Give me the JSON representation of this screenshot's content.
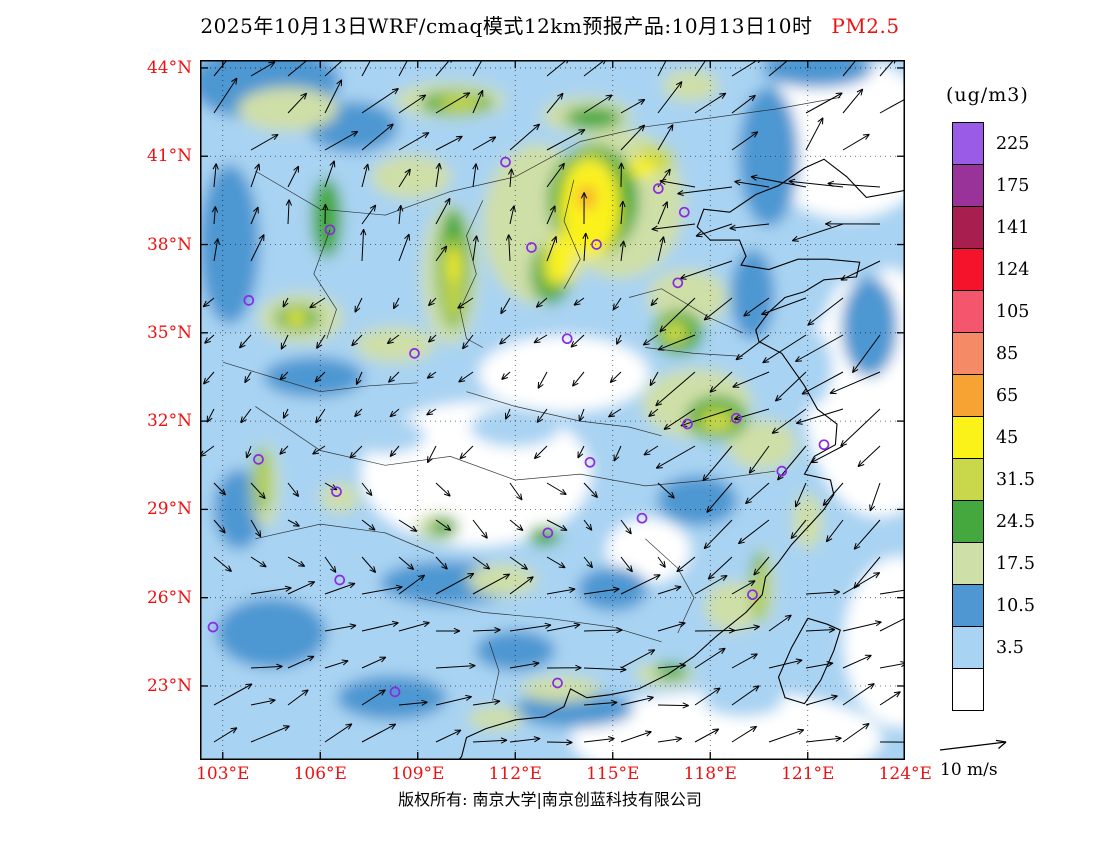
{
  "title": {
    "main": "2025年10月13日WRF/cmaq模式12km预报产品:10月13日10时",
    "species": "PM2.5"
  },
  "colors": {
    "label_red": "#ee1111",
    "station_purple": "#8b2be2",
    "frame_black": "#000000"
  },
  "axes": {
    "lat": [
      {
        "label": "44°N",
        "value": 44
      },
      {
        "label": "41°N",
        "value": 41
      },
      {
        "label": "38°N",
        "value": 38
      },
      {
        "label": "35°N",
        "value": 35
      },
      {
        "label": "32°N",
        "value": 32
      },
      {
        "label": "29°N",
        "value": 29
      },
      {
        "label": "26°N",
        "value": 26
      },
      {
        "label": "23°N",
        "value": 23
      }
    ],
    "lon": [
      {
        "label": "103°E",
        "value": 103
      },
      {
        "label": "106°E",
        "value": 106
      },
      {
        "label": "109°E",
        "value": 109
      },
      {
        "label": "112°E",
        "value": 112
      },
      {
        "label": "115°E",
        "value": 115
      },
      {
        "label": "118°E",
        "value": 118
      },
      {
        "label": "121°E",
        "value": 121
      },
      {
        "label": "124°E",
        "value": 124
      }
    ]
  },
  "legend": {
    "unit": "(ug/m3)",
    "levels": [
      "225",
      "175",
      "141",
      "124",
      "105",
      "85",
      "65",
      "45",
      "31.5",
      "24.5",
      "17.5",
      "10.5",
      "3.5"
    ],
    "colors": [
      "#9a5ce6",
      "#993399",
      "#a81e4e",
      "#f5132c",
      "#f4566e",
      "#f58a66",
      "#f6a333",
      "#fbf21a",
      "#c8d84a",
      "#44a83e",
      "#cfdfa8",
      "#4e97d2",
      "#a9d3f2",
      "#ffffff"
    ]
  },
  "wind_ref": {
    "label": "10 m/s"
  },
  "footer": {
    "text": "版权所有: 南京大学|南京创蓝科技有限公司"
  },
  "map": {
    "projection": {
      "lon0": 102.3,
      "lon_scale": 32.5,
      "lat0": 44.27,
      "lat_scale": 29.43
    },
    "stations": [
      [
        111.7,
        40.8
      ],
      [
        116.4,
        39.9
      ],
      [
        117.2,
        39.1
      ],
      [
        114.5,
        38.0
      ],
      [
        112.5,
        37.9
      ],
      [
        106.3,
        38.5
      ],
      [
        103.8,
        36.1
      ],
      [
        108.9,
        34.3
      ],
      [
        113.6,
        34.8
      ],
      [
        117.0,
        36.7
      ],
      [
        117.3,
        31.9
      ],
      [
        118.8,
        32.1
      ],
      [
        121.5,
        31.2
      ],
      [
        120.2,
        30.3
      ],
      [
        114.3,
        30.6
      ],
      [
        104.1,
        30.7
      ],
      [
        106.5,
        29.6
      ],
      [
        113.0,
        28.2
      ],
      [
        115.9,
        28.7
      ],
      [
        106.6,
        26.6
      ],
      [
        102.7,
        25.0
      ],
      [
        119.3,
        26.1
      ],
      [
        113.3,
        23.1
      ],
      [
        108.3,
        22.8
      ]
    ],
    "pm_field": [
      [
        110.8,
        30.2,
        115,
        72,
        13
      ],
      [
        113.5,
        33.6,
        85,
        38,
        13
      ],
      [
        123.2,
        33.0,
        75,
        125,
        13
      ],
      [
        122.2,
        41.6,
        90,
        80,
        13
      ],
      [
        118.5,
        21.2,
        155,
        48,
        13
      ],
      [
        116.1,
        27.6,
        42,
        32,
        13
      ],
      [
        123.8,
        24.5,
        55,
        85,
        13
      ],
      [
        120.6,
        36.6,
        38,
        48,
        12
      ],
      [
        122.6,
        37.8,
        32,
        30,
        12
      ],
      [
        121.0,
        33.8,
        25,
        40,
        12
      ],
      [
        119.0,
        22.5,
        40,
        16,
        12
      ],
      [
        112.0,
        31.8,
        45,
        20,
        12
      ],
      [
        108.0,
        31.5,
        40,
        18,
        12
      ],
      [
        104.3,
        43.5,
        75,
        38,
        11
      ],
      [
        107.0,
        42.0,
        45,
        25,
        11
      ],
      [
        103.2,
        38.0,
        30,
        80,
        11
      ],
      [
        119.8,
        41.0,
        30,
        70,
        11
      ],
      [
        119.3,
        36.3,
        22,
        45,
        11
      ],
      [
        121.3,
        44.0,
        55,
        20,
        11
      ],
      [
        104.5,
        24.8,
        55,
        35,
        11
      ],
      [
        108.2,
        22.6,
        55,
        22,
        11
      ],
      [
        113.8,
        22.2,
        60,
        18,
        11
      ],
      [
        110.0,
        26.5,
        70,
        22,
        11
      ],
      [
        115.0,
        26.3,
        35,
        22,
        11
      ],
      [
        117.6,
        29.3,
        40,
        25,
        11
      ],
      [
        105.8,
        33.5,
        50,
        20,
        11
      ],
      [
        122.9,
        35.2,
        28,
        50,
        11
      ],
      [
        112.0,
        24.2,
        40,
        20,
        11
      ],
      [
        103.5,
        29.0,
        25,
        40,
        11
      ],
      [
        105.0,
        42.6,
        50,
        22,
        10
      ],
      [
        110.0,
        42.9,
        55,
        18,
        10
      ],
      [
        114.2,
        42.4,
        45,
        18,
        10
      ],
      [
        117.4,
        43.4,
        28,
        16,
        10
      ],
      [
        108.8,
        40.3,
        40,
        22,
        10
      ],
      [
        112.7,
        38.7,
        55,
        80,
        10
      ],
      [
        115.2,
        39.4,
        65,
        75,
        10
      ],
      [
        117.3,
        36.2,
        40,
        28,
        10
      ],
      [
        105.4,
        35.5,
        42,
        25,
        10
      ],
      [
        108.3,
        34.6,
        40,
        18,
        10
      ],
      [
        110.0,
        37.0,
        28,
        70,
        10
      ],
      [
        117.6,
        32.6,
        55,
        35,
        10
      ],
      [
        119.6,
        31.2,
        35,
        25,
        10
      ],
      [
        104.3,
        29.8,
        14,
        42,
        10
      ],
      [
        106.6,
        29.4,
        20,
        15,
        10
      ],
      [
        111.6,
        26.6,
        35,
        16,
        10
      ],
      [
        109.6,
        28.4,
        22,
        14,
        10
      ],
      [
        118.7,
        25.7,
        28,
        25,
        10
      ],
      [
        119.6,
        26.4,
        12,
        38,
        10
      ],
      [
        113.4,
        22.9,
        40,
        13,
        10
      ],
      [
        116.6,
        23.4,
        30,
        12,
        10
      ],
      [
        111.4,
        21.9,
        28,
        12,
        10
      ],
      [
        121.0,
        28.6,
        15,
        28,
        10
      ],
      [
        106.2,
        38.9,
        15,
        40,
        9
      ],
      [
        110.1,
        37.2,
        16,
        60,
        9
      ],
      [
        114.4,
        39.5,
        45,
        55,
        9
      ],
      [
        113.1,
        37.0,
        20,
        30,
        9
      ],
      [
        117.0,
        35.0,
        25,
        22,
        9
      ],
      [
        118.2,
        32.1,
        30,
        22,
        9
      ],
      [
        104.2,
        30.0,
        8,
        30,
        9
      ],
      [
        119.5,
        26.4,
        8,
        34,
        9
      ],
      [
        110.2,
        42.8,
        35,
        12,
        9
      ],
      [
        114.4,
        42.3,
        28,
        11,
        9
      ],
      [
        105.3,
        35.5,
        22,
        13,
        9
      ],
      [
        109.8,
        28.4,
        14,
        9,
        9
      ],
      [
        112.9,
        28.1,
        16,
        10,
        9
      ],
      [
        116.8,
        23.5,
        16,
        8,
        9
      ],
      [
        110.1,
        36.8,
        9,
        42,
        8
      ],
      [
        114.3,
        39.8,
        28,
        38,
        8
      ],
      [
        116.3,
        40.9,
        20,
        14,
        8
      ],
      [
        113.2,
        37.2,
        12,
        20,
        8
      ],
      [
        116.9,
        35.0,
        14,
        12,
        8
      ],
      [
        118.2,
        32.0,
        18,
        13,
        8
      ],
      [
        119.5,
        26.3,
        5,
        26,
        8
      ],
      [
        104.2,
        30.0,
        5,
        22,
        8
      ],
      [
        105.3,
        35.5,
        12,
        8,
        8
      ],
      [
        110.3,
        42.8,
        22,
        8,
        8
      ],
      [
        114.3,
        39.2,
        30,
        48,
        7
      ],
      [
        113.4,
        37.5,
        14,
        24,
        7
      ],
      [
        115.9,
        40.6,
        14,
        10,
        7
      ],
      [
        105.2,
        35.5,
        8,
        5,
        7
      ],
      [
        110.1,
        37.3,
        6,
        16,
        7
      ],
      [
        114.2,
        39.6,
        9,
        12,
        6
      ]
    ],
    "coast": [
      [
        [
          124.7,
          40.0
        ],
        [
          123.8,
          39.8
        ],
        [
          122.8,
          39.6
        ],
        [
          122.2,
          40.3
        ],
        [
          121.5,
          40.9
        ],
        [
          120.9,
          40.6
        ],
        [
          120.1,
          40.0
        ],
        [
          119.4,
          39.7
        ],
        [
          118.6,
          39.1
        ],
        [
          117.8,
          39.2
        ],
        [
          117.6,
          38.6
        ],
        [
          118.0,
          38.15
        ],
        [
          118.9,
          38.15
        ],
        [
          119.1,
          37.6
        ],
        [
          118.95,
          37.3
        ],
        [
          119.8,
          37.15
        ],
        [
          120.7,
          37.5
        ],
        [
          121.6,
          37.5
        ],
        [
          122.6,
          37.4
        ],
        [
          122.5,
          36.9
        ],
        [
          121.5,
          36.8
        ],
        [
          120.9,
          36.4
        ],
        [
          120.3,
          36.2
        ],
        [
          119.8,
          35.7
        ],
        [
          119.4,
          35.1
        ],
        [
          119.5,
          34.7
        ],
        [
          120.2,
          34.3
        ],
        [
          120.9,
          33.2
        ],
        [
          121.3,
          32.4
        ],
        [
          121.9,
          31.9
        ],
        [
          121.85,
          31.2
        ],
        [
          121.2,
          30.8
        ],
        [
          120.9,
          30.2
        ],
        [
          121.7,
          30.0
        ],
        [
          121.8,
          29.5
        ],
        [
          121.5,
          29.0
        ],
        [
          121.0,
          28.4
        ],
        [
          120.5,
          27.8
        ],
        [
          120.1,
          27.2
        ],
        [
          119.7,
          26.7
        ],
        [
          119.6,
          26.1
        ],
        [
          119.1,
          25.5
        ],
        [
          118.2,
          24.7
        ],
        [
          117.5,
          24.0
        ],
        [
          116.7,
          23.4
        ],
        [
          115.8,
          22.9
        ],
        [
          114.9,
          22.7
        ],
        [
          114.2,
          22.6
        ],
        [
          113.7,
          22.9
        ],
        [
          113.5,
          22.3
        ],
        [
          112.9,
          21.95
        ],
        [
          112.0,
          21.85
        ],
        [
          111.1,
          21.55
        ],
        [
          110.5,
          21.25
        ],
        [
          110.35,
          20.6
        ],
        [
          110.1,
          20.3
        ]
      ],
      [
        [
          121.0,
          25.3
        ],
        [
          121.6,
          25.1
        ],
        [
          122.0,
          24.9
        ],
        [
          121.8,
          24.2
        ],
        [
          121.4,
          23.2
        ],
        [
          120.9,
          22.4
        ],
        [
          120.3,
          22.6
        ],
        [
          120.1,
          23.3
        ],
        [
          120.5,
          24.3
        ],
        [
          121.0,
          25.3
        ]
      ],
      [
        [
          124.7,
          40.9
        ],
        [
          124.4,
          40.0
        ],
        [
          124.7,
          39.6
        ]
      ]
    ],
    "borders": [
      [
        [
          104,
          40.5
        ],
        [
          106,
          39.2
        ],
        [
          108,
          39.0
        ],
        [
          110,
          39.8
        ],
        [
          112,
          40.3
        ],
        [
          114,
          41.5
        ],
        [
          116,
          42.0
        ],
        [
          118,
          42.3
        ],
        [
          120,
          42.6
        ],
        [
          122,
          43.0
        ]
      ],
      [
        [
          113.8,
          40.2
        ],
        [
          113.5,
          38.8
        ],
        [
          114.0,
          37.5
        ],
        [
          113.5,
          36.5
        ]
      ],
      [
        [
          111.0,
          39.5
        ],
        [
          110.5,
          38.3
        ],
        [
          110.8,
          37.0
        ],
        [
          110.3,
          35.8
        ],
        [
          110.5,
          34.8
        ],
        [
          111.0,
          34.5
        ]
      ],
      [
        [
          115.5,
          36.2
        ],
        [
          116.5,
          36.5
        ],
        [
          118.0,
          35.5
        ],
        [
          119.0,
          35.0
        ]
      ],
      [
        [
          110.5,
          33.0
        ],
        [
          112.0,
          32.5
        ],
        [
          114.0,
          32.0
        ],
        [
          115.5,
          31.8
        ],
        [
          116.5,
          31.5
        ]
      ],
      [
        [
          104,
          32.5
        ],
        [
          106,
          31.0
        ],
        [
          108,
          30.5
        ],
        [
          110,
          30.8
        ],
        [
          112,
          30.0
        ],
        [
          114,
          30.2
        ],
        [
          116,
          29.8
        ],
        [
          118,
          30.0
        ],
        [
          120,
          30.3
        ]
      ],
      [
        [
          109,
          26.0
        ],
        [
          111,
          25.5
        ],
        [
          113,
          25.3
        ],
        [
          115,
          25.0
        ],
        [
          116.5,
          24.5
        ]
      ],
      [
        [
          104,
          28.0
        ],
        [
          106,
          28.5
        ],
        [
          108,
          28.2
        ],
        [
          109.5,
          27.5
        ]
      ],
      [
        [
          116,
          28.0
        ],
        [
          117,
          27.0
        ],
        [
          117.5,
          26.0
        ],
        [
          117,
          24.8
        ]
      ],
      [
        [
          103,
          34.0
        ],
        [
          104.5,
          33.5
        ],
        [
          106,
          33.0
        ],
        [
          107.5,
          33.2
        ],
        [
          109,
          33.3
        ]
      ],
      [
        [
          116,
          34.5
        ],
        [
          117.5,
          34.3
        ],
        [
          119,
          34.2
        ]
      ],
      [
        [
          111.2,
          24.5
        ],
        [
          111.5,
          23.5
        ],
        [
          111.3,
          22.5
        ]
      ],
      [
        [
          106.3,
          38.5
        ],
        [
          105.8,
          37.0
        ],
        [
          106.5,
          35.8
        ],
        [
          106.2,
          34.8
        ]
      ]
    ]
  }
}
